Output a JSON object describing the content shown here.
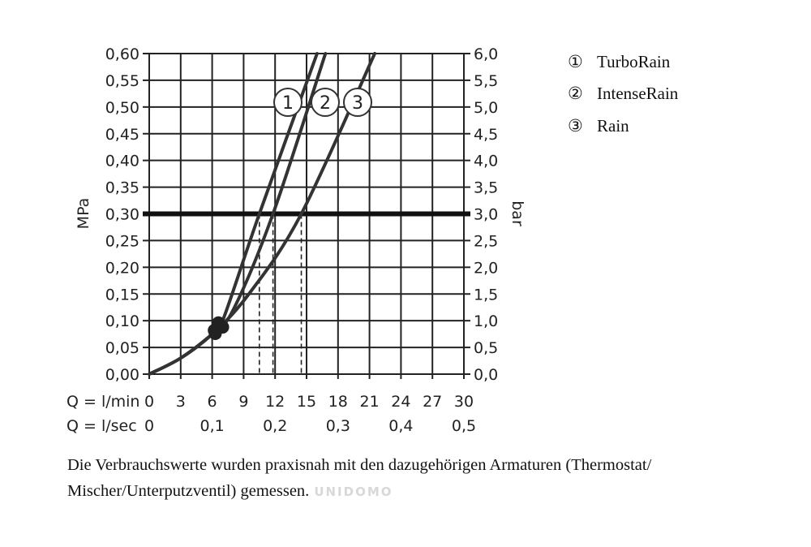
{
  "chart_data": {
    "type": "line",
    "x_label_flow_min": "Q = l/min",
    "x_label_flow_sec": "Q = l/sec",
    "x_ticks_min": [
      "0",
      "3",
      "6",
      "9",
      "12",
      "15",
      "18",
      "21",
      "24",
      "27",
      "30"
    ],
    "x_ticks_sec": [
      "0",
      "0,1",
      "0,2",
      "0,3",
      "0,4",
      "0,5"
    ],
    "y_left_label": "MPa",
    "y_right_label": "bar",
    "y_left_ticks": [
      "0,00",
      "0,05",
      "0,10",
      "0,15",
      "0,20",
      "0,25",
      "0,30",
      "0,35",
      "0,40",
      "0,45",
      "0,50",
      "0,55",
      "0,60"
    ],
    "y_right_ticks": [
      "0,0",
      "0,5",
      "1,0",
      "1,5",
      "2,0",
      "2,5",
      "3,0",
      "3,5",
      "4,0",
      "4,5",
      "5,0",
      "5,5",
      "6,0"
    ],
    "xlim": [
      0,
      30
    ],
    "ylim": [
      0,
      0.6
    ],
    "grid": true,
    "reference_line_mpa": 0.3,
    "legend_position": "top-right",
    "series": [
      {
        "name": "TurboRain",
        "marker": "1",
        "x": [
          0,
          3,
          6,
          7,
          10.5,
          16
        ],
        "y": [
          0,
          0.03,
          0.075,
          0.1,
          0.3,
          0.6
        ],
        "flow_at_ref": 10.5
      },
      {
        "name": "IntenseRain",
        "marker": "2",
        "x": [
          0,
          3,
          6,
          8,
          11.8,
          16.8
        ],
        "y": [
          0,
          0.03,
          0.075,
          0.12,
          0.3,
          0.6
        ],
        "flow_at_ref": 11.8
      },
      {
        "name": "Rain",
        "marker": "3",
        "x": [
          0,
          3,
          6,
          9.5,
          14.5,
          21.5
        ],
        "y": [
          0,
          0.03,
          0.075,
          0.15,
          0.3,
          0.6
        ],
        "flow_at_ref": 14.5
      }
    ]
  },
  "legend": [
    {
      "symbol": "①",
      "label": "TurboRain"
    },
    {
      "symbol": "②",
      "label": "IntenseRain"
    },
    {
      "symbol": "③",
      "label": "Rain"
    }
  ],
  "caption": {
    "line1": "Die Verbrauchswerte wurden praxisnah mit den dazugehörigen Armaturen (Thermostat/",
    "line2": "Mischer/Unterputzventil) gemessen.",
    "watermark": "UNIDOMO"
  }
}
